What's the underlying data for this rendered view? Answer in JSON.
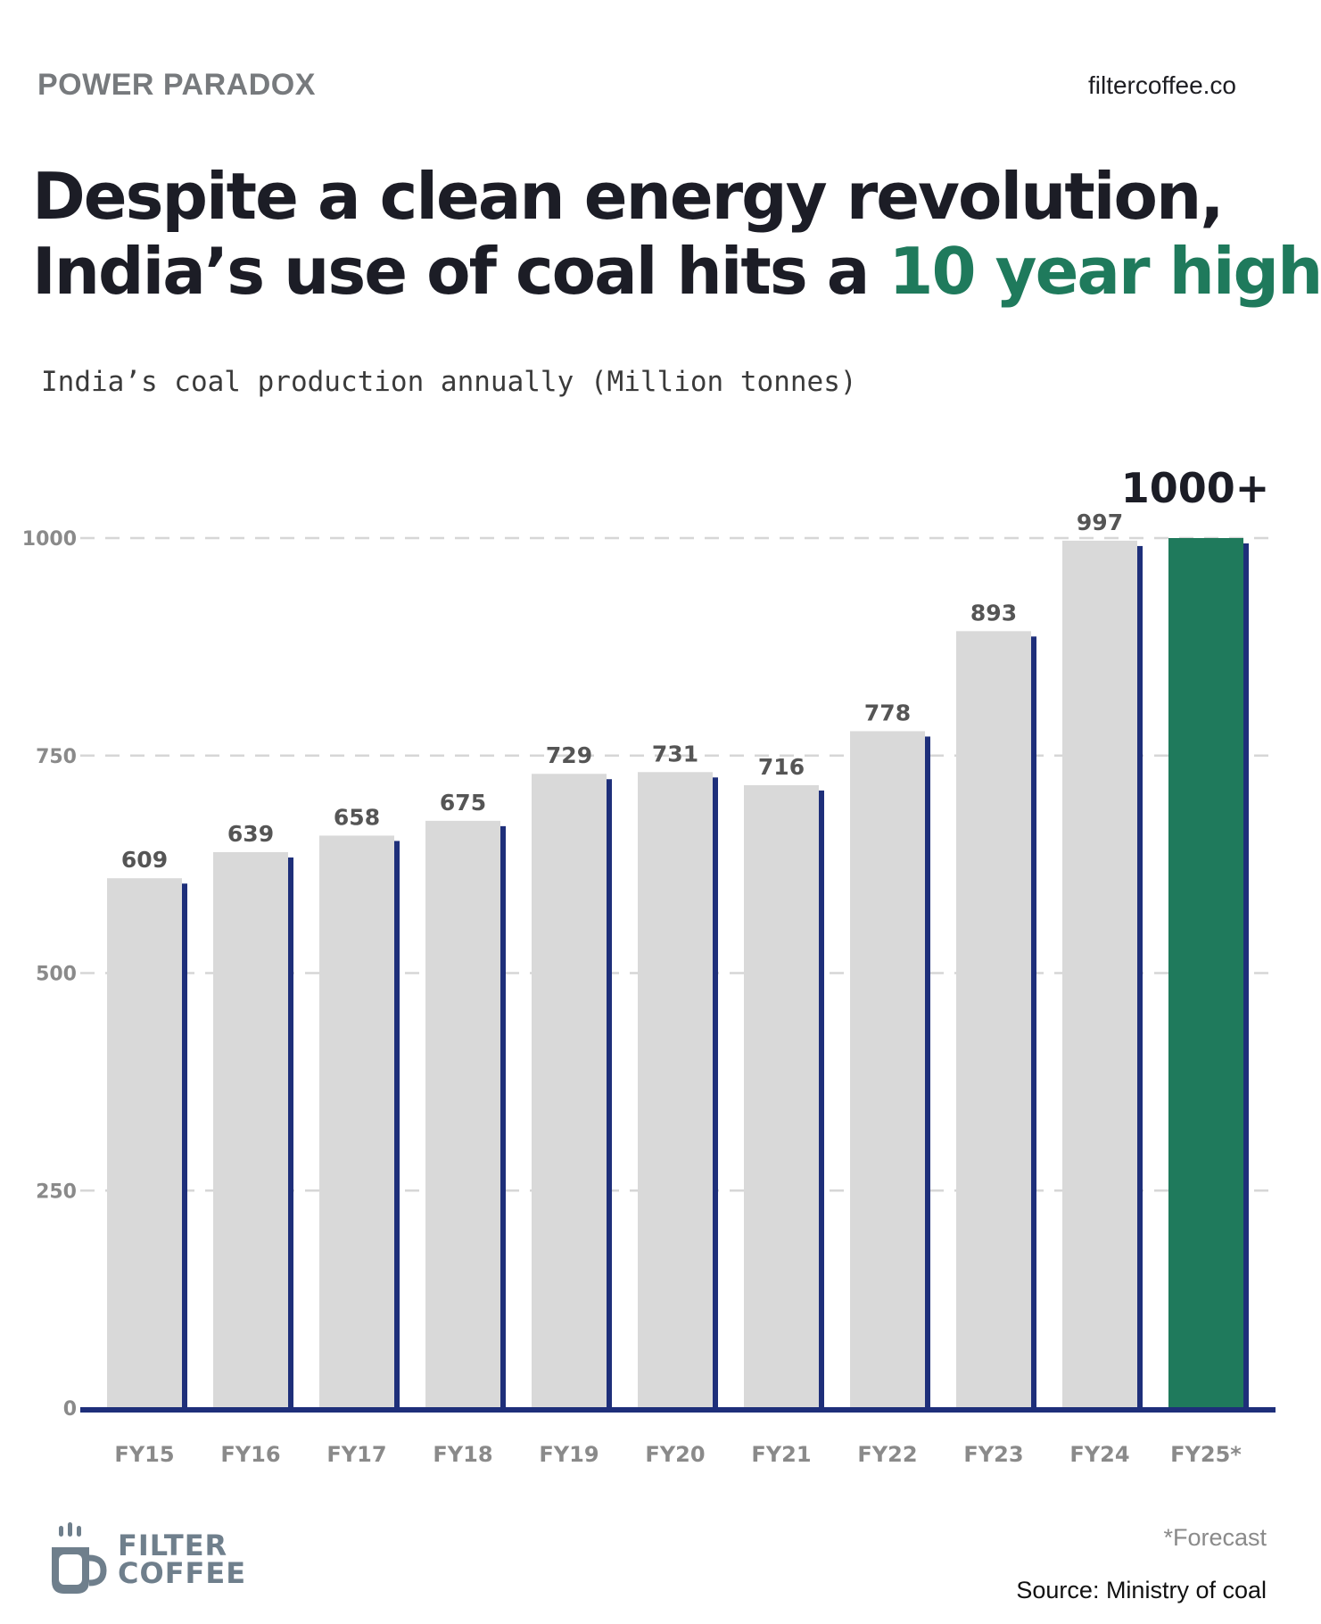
{
  "header": {
    "kicker": "POWER PARADOX",
    "site": "filtercoffee.co",
    "headline_line1": "Despite a clean energy revolution,",
    "headline_line2_prefix": "India’s use of coal hits a ",
    "headline_line2_highlight": "10 year high",
    "highlight_color": "#1f7a5c"
  },
  "chart_data": {
    "type": "bar",
    "title": "India’s coal production annually (Million tonnes)",
    "categories": [
      "FY15",
      "FY16",
      "FY17",
      "FY18",
      "FY19",
      "FY20",
      "FY21",
      "FY22",
      "FY23",
      "FY24",
      "FY25*"
    ],
    "values": [
      609,
      639,
      658,
      675,
      729,
      731,
      716,
      778,
      893,
      997,
      1000
    ],
    "value_labels": [
      "609",
      "639",
      "658",
      "675",
      "729",
      "731",
      "716",
      "778",
      "893",
      "997",
      "1000+"
    ],
    "yticks": [
      0,
      250,
      500,
      750,
      1000
    ],
    "ylim": [
      0,
      1000
    ],
    "grid": true,
    "highlight_index": 10,
    "colors": {
      "bar": "#d9d9d9",
      "highlight": "#1f7a5c",
      "shadow": "#1e2f7a",
      "axis": "#1e2f7a",
      "grid": "#d6d6d6"
    }
  },
  "footer": {
    "logo_line1": "FILTER",
    "logo_line2": "COFFEE",
    "logo_icon": "coffee-cup-icon",
    "note": "*Forecast",
    "source": "Source: Ministry of coal"
  }
}
